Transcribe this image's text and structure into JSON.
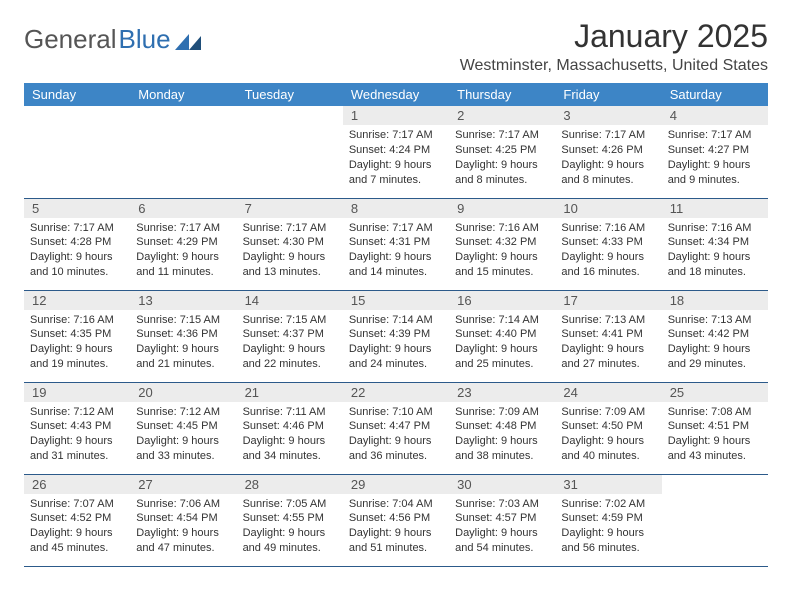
{
  "logo": {
    "text1": "General",
    "text2": "Blue"
  },
  "title": "January 2025",
  "subtitle": "Westminster, Massachusetts, United States",
  "colors": {
    "header_bg": "#3d85c6",
    "header_fg": "#ffffff",
    "daynum_bg": "#ececec",
    "row_border": "#2c5a8a",
    "logo_blue": "#2f6fb0"
  },
  "weekdays": [
    "Sunday",
    "Monday",
    "Tuesday",
    "Wednesday",
    "Thursday",
    "Friday",
    "Saturday"
  ],
  "weeks": [
    [
      {
        "n": "",
        "l": [
          "",
          "",
          "",
          ""
        ]
      },
      {
        "n": "",
        "l": [
          "",
          "",
          "",
          ""
        ]
      },
      {
        "n": "",
        "l": [
          "",
          "",
          "",
          ""
        ]
      },
      {
        "n": "1",
        "l": [
          "Sunrise: 7:17 AM",
          "Sunset: 4:24 PM",
          "Daylight: 9 hours",
          "and 7 minutes."
        ]
      },
      {
        "n": "2",
        "l": [
          "Sunrise: 7:17 AM",
          "Sunset: 4:25 PM",
          "Daylight: 9 hours",
          "and 8 minutes."
        ]
      },
      {
        "n": "3",
        "l": [
          "Sunrise: 7:17 AM",
          "Sunset: 4:26 PM",
          "Daylight: 9 hours",
          "and 8 minutes."
        ]
      },
      {
        "n": "4",
        "l": [
          "Sunrise: 7:17 AM",
          "Sunset: 4:27 PM",
          "Daylight: 9 hours",
          "and 9 minutes."
        ]
      }
    ],
    [
      {
        "n": "5",
        "l": [
          "Sunrise: 7:17 AM",
          "Sunset: 4:28 PM",
          "Daylight: 9 hours",
          "and 10 minutes."
        ]
      },
      {
        "n": "6",
        "l": [
          "Sunrise: 7:17 AM",
          "Sunset: 4:29 PM",
          "Daylight: 9 hours",
          "and 11 minutes."
        ]
      },
      {
        "n": "7",
        "l": [
          "Sunrise: 7:17 AM",
          "Sunset: 4:30 PM",
          "Daylight: 9 hours",
          "and 13 minutes."
        ]
      },
      {
        "n": "8",
        "l": [
          "Sunrise: 7:17 AM",
          "Sunset: 4:31 PM",
          "Daylight: 9 hours",
          "and 14 minutes."
        ]
      },
      {
        "n": "9",
        "l": [
          "Sunrise: 7:16 AM",
          "Sunset: 4:32 PM",
          "Daylight: 9 hours",
          "and 15 minutes."
        ]
      },
      {
        "n": "10",
        "l": [
          "Sunrise: 7:16 AM",
          "Sunset: 4:33 PM",
          "Daylight: 9 hours",
          "and 16 minutes."
        ]
      },
      {
        "n": "11",
        "l": [
          "Sunrise: 7:16 AM",
          "Sunset: 4:34 PM",
          "Daylight: 9 hours",
          "and 18 minutes."
        ]
      }
    ],
    [
      {
        "n": "12",
        "l": [
          "Sunrise: 7:16 AM",
          "Sunset: 4:35 PM",
          "Daylight: 9 hours",
          "and 19 minutes."
        ]
      },
      {
        "n": "13",
        "l": [
          "Sunrise: 7:15 AM",
          "Sunset: 4:36 PM",
          "Daylight: 9 hours",
          "and 21 minutes."
        ]
      },
      {
        "n": "14",
        "l": [
          "Sunrise: 7:15 AM",
          "Sunset: 4:37 PM",
          "Daylight: 9 hours",
          "and 22 minutes."
        ]
      },
      {
        "n": "15",
        "l": [
          "Sunrise: 7:14 AM",
          "Sunset: 4:39 PM",
          "Daylight: 9 hours",
          "and 24 minutes."
        ]
      },
      {
        "n": "16",
        "l": [
          "Sunrise: 7:14 AM",
          "Sunset: 4:40 PM",
          "Daylight: 9 hours",
          "and 25 minutes."
        ]
      },
      {
        "n": "17",
        "l": [
          "Sunrise: 7:13 AM",
          "Sunset: 4:41 PM",
          "Daylight: 9 hours",
          "and 27 minutes."
        ]
      },
      {
        "n": "18",
        "l": [
          "Sunrise: 7:13 AM",
          "Sunset: 4:42 PM",
          "Daylight: 9 hours",
          "and 29 minutes."
        ]
      }
    ],
    [
      {
        "n": "19",
        "l": [
          "Sunrise: 7:12 AM",
          "Sunset: 4:43 PM",
          "Daylight: 9 hours",
          "and 31 minutes."
        ]
      },
      {
        "n": "20",
        "l": [
          "Sunrise: 7:12 AM",
          "Sunset: 4:45 PM",
          "Daylight: 9 hours",
          "and 33 minutes."
        ]
      },
      {
        "n": "21",
        "l": [
          "Sunrise: 7:11 AM",
          "Sunset: 4:46 PM",
          "Daylight: 9 hours",
          "and 34 minutes."
        ]
      },
      {
        "n": "22",
        "l": [
          "Sunrise: 7:10 AM",
          "Sunset: 4:47 PM",
          "Daylight: 9 hours",
          "and 36 minutes."
        ]
      },
      {
        "n": "23",
        "l": [
          "Sunrise: 7:09 AM",
          "Sunset: 4:48 PM",
          "Daylight: 9 hours",
          "and 38 minutes."
        ]
      },
      {
        "n": "24",
        "l": [
          "Sunrise: 7:09 AM",
          "Sunset: 4:50 PM",
          "Daylight: 9 hours",
          "and 40 minutes."
        ]
      },
      {
        "n": "25",
        "l": [
          "Sunrise: 7:08 AM",
          "Sunset: 4:51 PM",
          "Daylight: 9 hours",
          "and 43 minutes."
        ]
      }
    ],
    [
      {
        "n": "26",
        "l": [
          "Sunrise: 7:07 AM",
          "Sunset: 4:52 PM",
          "Daylight: 9 hours",
          "and 45 minutes."
        ]
      },
      {
        "n": "27",
        "l": [
          "Sunrise: 7:06 AM",
          "Sunset: 4:54 PM",
          "Daylight: 9 hours",
          "and 47 minutes."
        ]
      },
      {
        "n": "28",
        "l": [
          "Sunrise: 7:05 AM",
          "Sunset: 4:55 PM",
          "Daylight: 9 hours",
          "and 49 minutes."
        ]
      },
      {
        "n": "29",
        "l": [
          "Sunrise: 7:04 AM",
          "Sunset: 4:56 PM",
          "Daylight: 9 hours",
          "and 51 minutes."
        ]
      },
      {
        "n": "30",
        "l": [
          "Sunrise: 7:03 AM",
          "Sunset: 4:57 PM",
          "Daylight: 9 hours",
          "and 54 minutes."
        ]
      },
      {
        "n": "31",
        "l": [
          "Sunrise: 7:02 AM",
          "Sunset: 4:59 PM",
          "Daylight: 9 hours",
          "and 56 minutes."
        ]
      },
      {
        "n": "",
        "l": [
          "",
          "",
          "",
          ""
        ]
      }
    ]
  ]
}
